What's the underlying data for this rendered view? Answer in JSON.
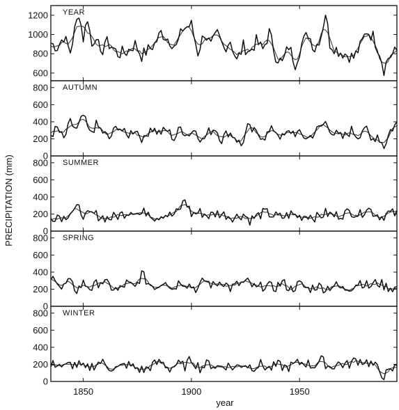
{
  "chart_data": {
    "type": "line",
    "xlabel": "year",
    "ylabel": "PRECIPITATION (mm)",
    "xlim": [
      1835,
      1995
    ],
    "xticks": [
      1850,
      1900,
      1950
    ],
    "panels": [
      {
        "label": "YEAR",
        "ylim": [
          520,
          1300
        ],
        "yticks": [
          600,
          800,
          1000,
          1200
        ],
        "anchors": [
          [
            1835,
            910
          ],
          [
            1838,
            870
          ],
          [
            1841,
            980
          ],
          [
            1844,
            820
          ],
          [
            1846,
            1040
          ],
          [
            1848,
            1230
          ],
          [
            1850,
            960
          ],
          [
            1852,
            1180
          ],
          [
            1854,
            880
          ],
          [
            1856,
            1010
          ],
          [
            1858,
            760
          ],
          [
            1860,
            930
          ],
          [
            1863,
            880
          ],
          [
            1866,
            800
          ],
          [
            1870,
            820
          ],
          [
            1874,
            900
          ],
          [
            1877,
            780
          ],
          [
            1880,
            840
          ],
          [
            1883,
            900
          ],
          [
            1886,
            1020
          ],
          [
            1890,
            940
          ],
          [
            1893,
            870
          ],
          [
            1896,
            1060
          ],
          [
            1900,
            1100
          ],
          [
            1903,
            810
          ],
          [
            1906,
            1020
          ],
          [
            1909,
            880
          ],
          [
            1912,
            1000
          ],
          [
            1915,
            860
          ],
          [
            1918,
            940
          ],
          [
            1921,
            720
          ],
          [
            1924,
            880
          ],
          [
            1927,
            820
          ],
          [
            1930,
            930
          ],
          [
            1933,
            840
          ],
          [
            1936,
            1020
          ],
          [
            1939,
            780
          ],
          [
            1942,
            700
          ],
          [
            1945,
            880
          ],
          [
            1948,
            700
          ],
          [
            1951,
            900
          ],
          [
            1954,
            1010
          ],
          [
            1957,
            850
          ],
          [
            1960,
            1000
          ],
          [
            1962,
            1230
          ],
          [
            1964,
            910
          ],
          [
            1968,
            830
          ],
          [
            1971,
            800
          ],
          [
            1975,
            760
          ],
          [
            1978,
            870
          ],
          [
            1981,
            1040
          ],
          [
            1984,
            980
          ],
          [
            1987,
            820
          ],
          [
            1989,
            640
          ],
          [
            1991,
            760
          ],
          [
            1995,
            830
          ]
        ]
      },
      {
        "label": "AUTUMN",
        "ylim": [
          0,
          880
        ],
        "yticks": [
          0,
          200,
          400,
          600,
          800
        ],
        "anchors": [
          [
            1835,
            250
          ],
          [
            1838,
            320
          ],
          [
            1841,
            190
          ],
          [
            1844,
            390
          ],
          [
            1847,
            300
          ],
          [
            1850,
            470
          ],
          [
            1853,
            260
          ],
          [
            1856,
            360
          ],
          [
            1859,
            280
          ],
          [
            1862,
            200
          ],
          [
            1866,
            360
          ],
          [
            1870,
            230
          ],
          [
            1874,
            320
          ],
          [
            1878,
            180
          ],
          [
            1881,
            340
          ],
          [
            1885,
            270
          ],
          [
            1889,
            300
          ],
          [
            1892,
            200
          ],
          [
            1895,
            330
          ],
          [
            1898,
            250
          ],
          [
            1902,
            310
          ],
          [
            1905,
            170
          ],
          [
            1908,
            280
          ],
          [
            1911,
            330
          ],
          [
            1914,
            190
          ],
          [
            1917,
            280
          ],
          [
            1920,
            230
          ],
          [
            1923,
            120
          ],
          [
            1926,
            330
          ],
          [
            1930,
            260
          ],
          [
            1934,
            230
          ],
          [
            1938,
            320
          ],
          [
            1942,
            210
          ],
          [
            1946,
            290
          ],
          [
            1950,
            250
          ],
          [
            1954,
            210
          ],
          [
            1958,
            300
          ],
          [
            1962,
            390
          ],
          [
            1966,
            260
          ],
          [
            1970,
            210
          ],
          [
            1974,
            300
          ],
          [
            1977,
            230
          ],
          [
            1980,
            350
          ],
          [
            1983,
            170
          ],
          [
            1986,
            250
          ],
          [
            1989,
            110
          ],
          [
            1992,
            300
          ],
          [
            1995,
            380
          ]
        ]
      },
      {
        "label": "SUMMER",
        "ylim": [
          0,
          880
        ],
        "yticks": [
          0,
          200,
          400,
          600,
          800
        ],
        "anchors": [
          [
            1835,
            150
          ],
          [
            1838,
            190
          ],
          [
            1841,
            160
          ],
          [
            1844,
            230
          ],
          [
            1848,
            260
          ],
          [
            1851,
            170
          ],
          [
            1855,
            200
          ],
          [
            1858,
            170
          ],
          [
            1862,
            150
          ],
          [
            1866,
            180
          ],
          [
            1870,
            220
          ],
          [
            1873,
            250
          ],
          [
            1876,
            190
          ],
          [
            1880,
            240
          ],
          [
            1883,
            160
          ],
          [
            1887,
            200
          ],
          [
            1891,
            180
          ],
          [
            1894,
            230
          ],
          [
            1897,
            370
          ],
          [
            1900,
            200
          ],
          [
            1904,
            220
          ],
          [
            1908,
            180
          ],
          [
            1912,
            210
          ],
          [
            1916,
            190
          ],
          [
            1920,
            160
          ],
          [
            1924,
            200
          ],
          [
            1927,
            130
          ],
          [
            1930,
            170
          ],
          [
            1934,
            220
          ],
          [
            1938,
            180
          ],
          [
            1942,
            160
          ],
          [
            1946,
            200
          ],
          [
            1950,
            170
          ],
          [
            1954,
            190
          ],
          [
            1958,
            160
          ],
          [
            1962,
            210
          ],
          [
            1966,
            180
          ],
          [
            1970,
            200
          ],
          [
            1974,
            230
          ],
          [
            1978,
            190
          ],
          [
            1981,
            280
          ],
          [
            1984,
            220
          ],
          [
            1988,
            170
          ],
          [
            1991,
            210
          ],
          [
            1995,
            200
          ]
        ]
      },
      {
        "label": "SPRING",
        "ylim": [
          0,
          880
        ],
        "yticks": [
          0,
          200,
          400,
          600,
          800
        ],
        "anchors": [
          [
            1835,
            290
          ],
          [
            1837,
            360
          ],
          [
            1840,
            200
          ],
          [
            1843,
            290
          ],
          [
            1847,
            190
          ],
          [
            1850,
            270
          ],
          [
            1854,
            210
          ],
          [
            1858,
            300
          ],
          [
            1862,
            240
          ],
          [
            1866,
            180
          ],
          [
            1870,
            270
          ],
          [
            1874,
            210
          ],
          [
            1877,
            380
          ],
          [
            1880,
            270
          ],
          [
            1884,
            230
          ],
          [
            1888,
            320
          ],
          [
            1891,
            200
          ],
          [
            1895,
            300
          ],
          [
            1899,
            250
          ],
          [
            1903,
            200
          ],
          [
            1906,
            310
          ],
          [
            1910,
            240
          ],
          [
            1914,
            300
          ],
          [
            1918,
            210
          ],
          [
            1922,
            260
          ],
          [
            1926,
            280
          ],
          [
            1930,
            200
          ],
          [
            1934,
            250
          ],
          [
            1938,
            210
          ],
          [
            1942,
            280
          ],
          [
            1946,
            200
          ],
          [
            1950,
            260
          ],
          [
            1954,
            200
          ],
          [
            1958,
            240
          ],
          [
            1962,
            210
          ],
          [
            1966,
            250
          ],
          [
            1970,
            200
          ],
          [
            1974,
            230
          ],
          [
            1978,
            290
          ],
          [
            1982,
            230
          ],
          [
            1986,
            280
          ],
          [
            1990,
            230
          ],
          [
            1995,
            210
          ]
        ]
      },
      {
        "label": "WINTER",
        "ylim": [
          0,
          880
        ],
        "yticks": [
          0,
          200,
          400,
          600,
          800
        ],
        "anchors": [
          [
            1835,
            180
          ],
          [
            1838,
            220
          ],
          [
            1841,
            160
          ],
          [
            1844,
            200
          ],
          [
            1848,
            190
          ],
          [
            1851,
            140
          ],
          [
            1854,
            180
          ],
          [
            1858,
            230
          ],
          [
            1862,
            170
          ],
          [
            1866,
            150
          ],
          [
            1870,
            200
          ],
          [
            1874,
            160
          ],
          [
            1878,
            130
          ],
          [
            1882,
            190
          ],
          [
            1886,
            230
          ],
          [
            1890,
            150
          ],
          [
            1893,
            200
          ],
          [
            1897,
            180
          ],
          [
            1900,
            260
          ],
          [
            1904,
            160
          ],
          [
            1908,
            210
          ],
          [
            1912,
            170
          ],
          [
            1916,
            190
          ],
          [
            1920,
            160
          ],
          [
            1924,
            210
          ],
          [
            1928,
            170
          ],
          [
            1932,
            200
          ],
          [
            1936,
            150
          ],
          [
            1940,
            190
          ],
          [
            1944,
            160
          ],
          [
            1948,
            200
          ],
          [
            1952,
            230
          ],
          [
            1956,
            180
          ],
          [
            1960,
            250
          ],
          [
            1964,
            170
          ],
          [
            1968,
            210
          ],
          [
            1972,
            190
          ],
          [
            1976,
            250
          ],
          [
            1980,
            240
          ],
          [
            1983,
            210
          ],
          [
            1986,
            150
          ],
          [
            1989,
            70
          ],
          [
            1992,
            110
          ],
          [
            1995,
            190
          ]
        ]
      }
    ]
  }
}
